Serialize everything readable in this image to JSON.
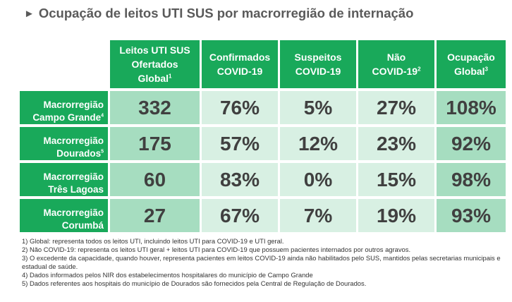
{
  "title": "Ocupação de leitos UTI SUS por macrorregião de internação",
  "title_marker": "►",
  "headers": [
    {
      "lines": [
        "Leitos UTI SUS",
        "Ofertados",
        "Global"
      ],
      "sup": "1"
    },
    {
      "lines": [
        "Confirmados",
        "COVID-19"
      ],
      "sup": ""
    },
    {
      "lines": [
        "Suspeitos",
        "COVID-19"
      ],
      "sup": ""
    },
    {
      "lines": [
        "Não",
        "COVID-19"
      ],
      "sup": "2"
    },
    {
      "lines": [
        "Ocupação",
        "Global"
      ],
      "sup": "3"
    }
  ],
  "rows": [
    {
      "label": [
        "Macrorregião",
        "Campo Grande"
      ],
      "sup": "4",
      "values": [
        "332",
        "76%",
        "5%",
        "27%",
        "108%"
      ]
    },
    {
      "label": [
        "Macrorregião",
        "Dourados"
      ],
      "sup": "5",
      "values": [
        "175",
        "57%",
        "12%",
        "23%",
        "92%"
      ]
    },
    {
      "label": [
        "Macrorregião",
        "Três Lagoas"
      ],
      "sup": "",
      "values": [
        "60",
        "83%",
        "0%",
        "15%",
        "98%"
      ]
    },
    {
      "label": [
        "Macrorregião",
        "Corumbá"
      ],
      "sup": "",
      "values": [
        "27",
        "67%",
        "7%",
        "19%",
        "93%"
      ]
    }
  ],
  "notes": [
    "1) Global: representa todos os leitos UTI, incluindo leitos UTI para COVID-19 e UTI geral.",
    "2) Não COVID-19: representa os leitos UTI geral + leitos UTI para COVID-19 que possuem pacientes internados por outros agravos.",
    "3) O excedente da capacidade, quando houver, representa pacientes em leitos COVID-19 ainda não habilitados pelo SUS, mantidos pelas secretarias municipais e estadual de saúde.",
    "4) Dados informados pelos NIR dos estabelecimentos hospitalares do município de Campo Grande",
    "5) Dados referentes aos hospitais do município de Dourados são fornecidos pela Central de Regulação de Dourados."
  ],
  "colors": {
    "header_green": "#19a95a",
    "dark_cell": "#a6ddc0",
    "light_cell": "#d8f0e3"
  }
}
